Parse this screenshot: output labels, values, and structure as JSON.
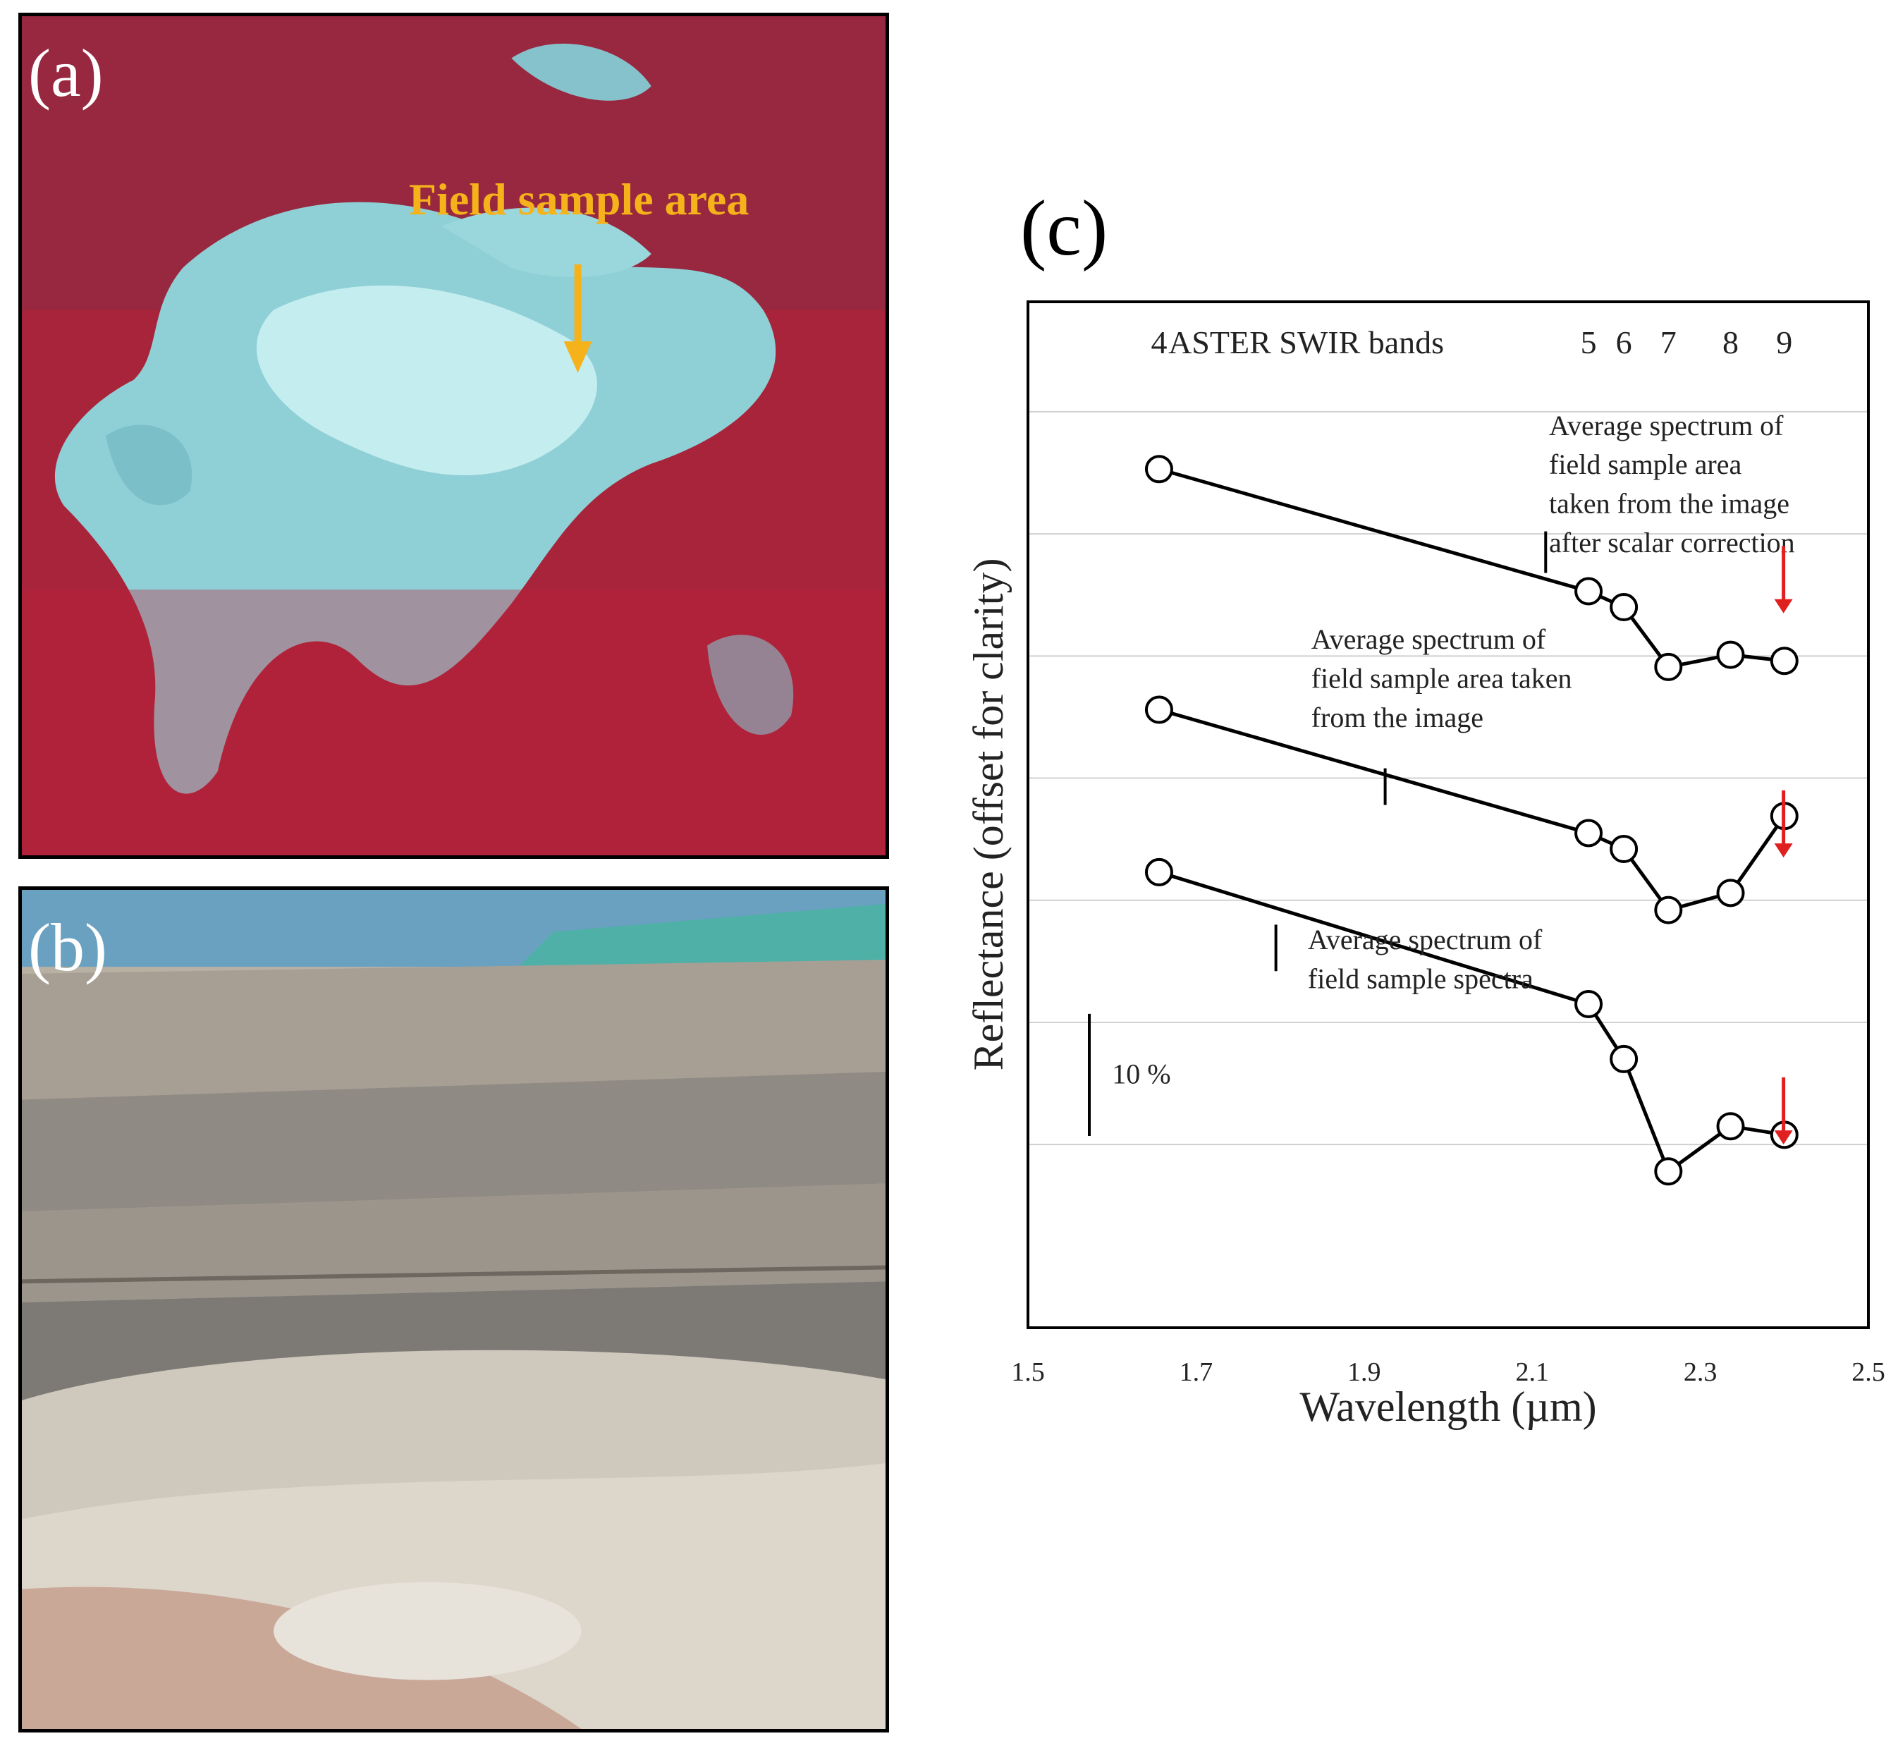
{
  "panels": {
    "a": {
      "label": "(a)",
      "annotation": "Field sample area",
      "annotation_color": "#f5b21a"
    },
    "b": {
      "label": "(b)"
    },
    "c": {
      "label": "(c)"
    }
  },
  "chart_data": {
    "type": "line",
    "xlabel": "Wavelength (µm)",
    "ylabel": "Reflectance (offset for clarity)",
    "xlim": [
      1.5,
      2.5
    ],
    "x_ticks": [
      "1.5",
      "1.7",
      "1.9",
      "2.1",
      "2.3",
      "2.5"
    ],
    "y_ticks_shown": false,
    "grid": "horizontal",
    "band_header": {
      "text": "ASTER SWIR bands",
      "bands": [
        {
          "label": "4",
          "x": 1.656
        },
        {
          "label": "5",
          "x": 2.167
        },
        {
          "label": "6",
          "x": 2.209
        },
        {
          "label": "7",
          "x": 2.262
        },
        {
          "label": "8",
          "x": 2.336
        },
        {
          "label": "9",
          "x": 2.4
        }
      ]
    },
    "scale_bar_label": "10  %",
    "scale_bar_value": 10,
    "x": [
      1.656,
      2.167,
      2.209,
      2.262,
      2.336,
      2.4
    ],
    "series": [
      {
        "label_lines": [
          "Average spectrum of",
          "field sample area",
          "taken from the image",
          "after scalar correction"
        ],
        "values": [
          36.3,
          26.3,
          25.0,
          20.1,
          21.1,
          20.6
        ],
        "arrow_color": "#e02020"
      },
      {
        "label_lines": [
          "Average spectrum of",
          "field sample area taken",
          "from the image"
        ],
        "values": [
          16.6,
          6.5,
          5.2,
          0.2,
          1.6,
          7.9
        ],
        "arrow_color": "#e02020"
      },
      {
        "label_lines": [
          "Average spectrum of",
          "field sample spectra"
        ],
        "values": [
          3.3,
          -7.5,
          -12.0,
          -21.2,
          -17.5,
          -18.2
        ],
        "arrow_color": "#e02020"
      }
    ],
    "grid_values": [
      41.0,
      31.0,
      21.0,
      11.0,
      1.0,
      -9.0,
      -19.0
    ]
  }
}
